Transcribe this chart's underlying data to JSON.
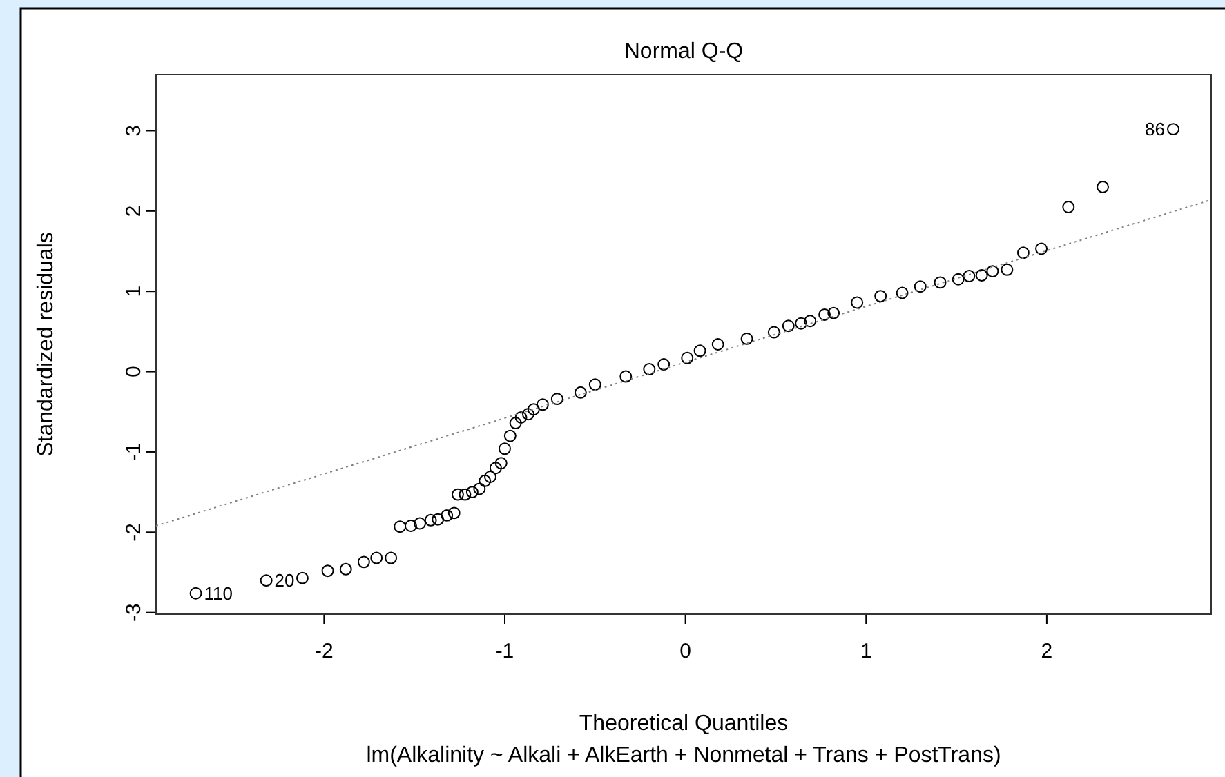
{
  "chart_data": {
    "type": "scatter",
    "title": "Normal Q-Q",
    "subtitle": "lm(Alkalinity ~ Alkali + AlkEarth + Nonmetal + Trans + PostTrans)",
    "xlabel": "Theoretical Quantiles",
    "ylabel": "Standardized residuals",
    "xlim": [
      -2.93,
      2.91
    ],
    "ylim": [
      -3.02,
      3.7
    ],
    "xticks": [
      -2,
      -1,
      0,
      1,
      2
    ],
    "yticks": [
      -3,
      -2,
      -1,
      0,
      1,
      2,
      3
    ],
    "grid": false,
    "series": [
      {
        "color": "#000000",
        "marker": "circle",
        "x": [
          -2.71,
          -2.32,
          -2.12,
          -1.98,
          -1.88,
          -1.78,
          -1.71,
          -1.63,
          -1.58,
          -1.52,
          -1.47,
          -1.41,
          -1.37,
          -1.32,
          -1.28,
          -1.26,
          -1.22,
          -1.18,
          -1.14,
          -1.11,
          -1.08,
          -1.05,
          -1.02,
          -1.0,
          -0.97,
          -0.94,
          -0.91,
          -0.87,
          -0.84,
          -0.79,
          -0.71,
          -0.58,
          -0.5,
          -0.33,
          -0.2,
          -0.12,
          0.01,
          0.08,
          0.18,
          0.34,
          0.49,
          0.57,
          0.64,
          0.69,
          0.77,
          0.82,
          0.95,
          1.08,
          1.2,
          1.3,
          1.41,
          1.51,
          1.57,
          1.64,
          1.7,
          1.78,
          1.87,
          1.97,
          2.12,
          2.31,
          2.7
        ],
        "values": [
          -2.76,
          -2.6,
          -2.57,
          -2.48,
          -2.46,
          -2.37,
          -2.32,
          -2.32,
          -1.93,
          -1.92,
          -1.89,
          -1.85,
          -1.84,
          -1.79,
          -1.76,
          -1.53,
          -1.53,
          -1.5,
          -1.46,
          -1.36,
          -1.31,
          -1.2,
          -1.14,
          -0.96,
          -0.8,
          -0.64,
          -0.57,
          -0.53,
          -0.47,
          -0.41,
          -0.34,
          -0.26,
          -0.16,
          -0.06,
          0.03,
          0.09,
          0.17,
          0.26,
          0.34,
          0.41,
          0.49,
          0.57,
          0.6,
          0.63,
          0.71,
          0.73,
          0.86,
          0.94,
          0.98,
          1.06,
          1.11,
          1.15,
          1.19,
          1.2,
          1.25,
          1.27,
          1.48,
          1.53,
          2.05,
          2.3,
          3.02
        ]
      },
      {
        "type": "line",
        "color": "#808080",
        "marker": "none",
        "line_style": "dotted",
        "x": [
          -2.93,
          2.91
        ],
        "values": [
          -1.92,
          2.14
        ]
      }
    ],
    "annotations": [
      {
        "text": "110",
        "x": -2.71,
        "y": -2.76
      },
      {
        "text": "20",
        "x": -2.32,
        "y": -2.6
      },
      {
        "text": "86",
        "x": 2.7,
        "y": 3.02
      }
    ]
  }
}
